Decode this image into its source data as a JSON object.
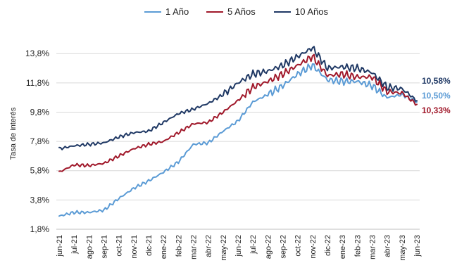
{
  "chart_data": {
    "type": "line",
    "title": "",
    "ylabel": "Tasa de interés",
    "xlabel": "",
    "ylim": [
      1.8,
      15.3
    ],
    "y_ticks": [
      1.8,
      3.8,
      5.8,
      7.8,
      9.8,
      11.8,
      13.8
    ],
    "y_tick_labels": [
      "1,8%",
      "3,8%",
      "5,8%",
      "7,8%",
      "9,8%",
      "11,8%",
      "13,8%"
    ],
    "grid": "horizontal",
    "legend_position": "top",
    "x_tick_labels": [
      "jun-21",
      "jul-21",
      "ago-21",
      "sep-21",
      "oct-21",
      "nov-21",
      "dic-21",
      "ene-22",
      "feb-22",
      "mar-22",
      "abr-22",
      "may-22",
      "jun-22",
      "jul-22",
      "ago-22",
      "sep-22",
      "oct-22",
      "nov-22",
      "dic-22",
      "ene-23",
      "feb-23",
      "mar-23",
      "abr-23",
      "may-23",
      "jun-23"
    ],
    "x": [
      "jun-21",
      "jul-21",
      "ago-21",
      "sep-21",
      "oct-21",
      "nov-21",
      "dic-21",
      "ene-22",
      "feb-22",
      "mar-22",
      "abr-22",
      "may-22",
      "jun-22",
      "jul-22",
      "ago-22",
      "sep-22",
      "oct-22",
      "nov-22",
      "dic-22",
      "ene-23",
      "feb-23",
      "mar-23",
      "abr-23",
      "may-23",
      "jun-23"
    ],
    "series": [
      {
        "name": "1 Año",
        "color": "#5b9bd5",
        "values": [
          2.7,
          2.95,
          2.95,
          3.1,
          3.9,
          4.6,
          5.1,
          5.7,
          6.4,
          7.6,
          7.7,
          8.5,
          9.2,
          10.5,
          11.0,
          11.6,
          12.4,
          13.0,
          12.0,
          11.9,
          11.9,
          11.6,
          10.8,
          11.0,
          10.5
        ],
        "end_label": "10,50%"
      },
      {
        "name": "5 Años",
        "color": "#a0182a",
        "values": [
          5.7,
          6.2,
          6.15,
          6.3,
          6.8,
          7.3,
          7.6,
          7.8,
          8.4,
          9.0,
          9.1,
          9.8,
          10.6,
          11.5,
          11.9,
          12.4,
          13.0,
          13.6,
          12.3,
          12.4,
          12.2,
          12.2,
          11.2,
          11.1,
          10.33
        ],
        "end_label": "10,33%"
      },
      {
        "name": "10 Años",
        "color": "#1f3864",
        "values": [
          7.3,
          7.5,
          7.6,
          7.7,
          8.1,
          8.4,
          8.5,
          9.1,
          9.7,
          10.0,
          10.4,
          11.0,
          11.8,
          12.4,
          12.6,
          13.0,
          13.6,
          14.2,
          12.8,
          12.9,
          12.8,
          12.5,
          11.5,
          11.4,
          10.58
        ],
        "end_label": "10,58%"
      }
    ]
  }
}
